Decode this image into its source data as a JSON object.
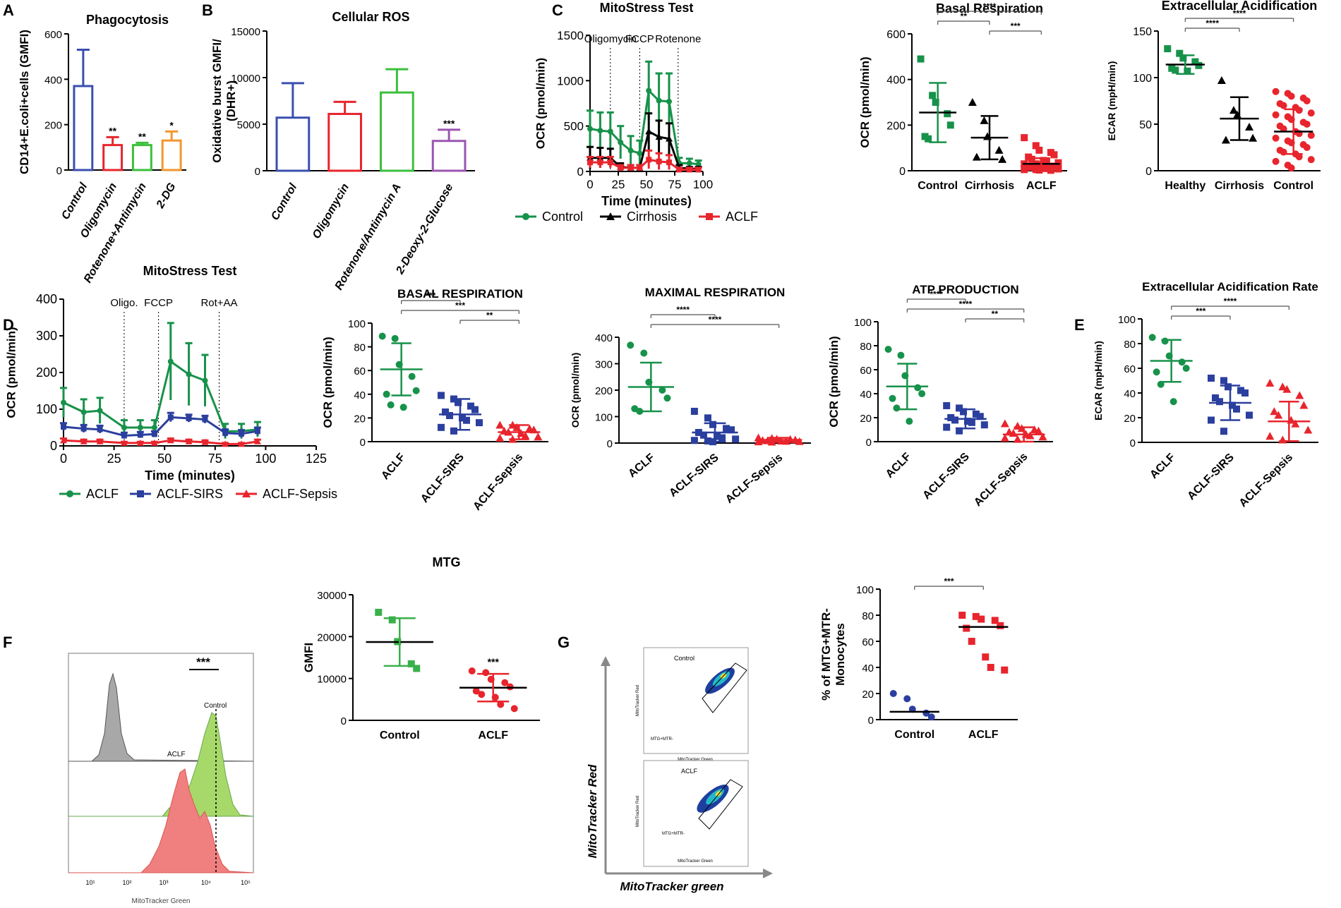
{
  "panel_letters": [
    "A",
    "B",
    "C",
    "D",
    "E",
    "F",
    "G"
  ],
  "colors": {
    "blue": "#3a4fb0",
    "red": "#e8252d",
    "green": "#3cbf3c",
    "orange": "#f3962d",
    "purple": "#9b55b0",
    "dgreen": "#17924a",
    "black": "#000000",
    "navy": "#2b3f9e",
    "mtgGreen": "#3ab04a"
  },
  "chart_data": [
    {
      "id": "A",
      "type": "bar",
      "title": "Phagocytosis",
      "ylabel": "CD14+E.coli+cells (GMFI)",
      "ylim": [
        0,
        600
      ],
      "yticks": [
        0,
        200,
        400,
        600
      ],
      "categories": [
        "Control",
        "Oligomycin",
        "Rotenone+Antimycin",
        "2-DG"
      ],
      "values": [
        370,
        110,
        110,
        130
      ],
      "errors": [
        160,
        35,
        10,
        40
      ],
      "sig": [
        "",
        "**",
        "**",
        "*"
      ],
      "colors": [
        "#3a4fb0",
        "#e8252d",
        "#3cbf3c",
        "#f3962d"
      ]
    },
    {
      "id": "B",
      "type": "bar",
      "title": "Cellular ROS",
      "ylabel": "Oxidative burst GMFI/ (DHR+)",
      "ylim": [
        0,
        15000
      ],
      "yticks": [
        0,
        5000,
        10000,
        15000
      ],
      "categories": [
        "Control",
        "Oligomycin",
        "Rotenone/Antimycin A",
        "2-Deoxy-2-Glucose"
      ],
      "values": [
        5700,
        6100,
        8400,
        3200
      ],
      "errors": [
        3700,
        1300,
        2500,
        1200
      ],
      "sig": [
        "",
        "",
        "",
        "***"
      ],
      "colors": [
        "#3a4fb0",
        "#e8252d",
        "#3cbf3c",
        "#9b55b0"
      ]
    },
    {
      "id": "C1",
      "type": "line",
      "title": "MitoStress Test",
      "xlabel": "Time (minutes)",
      "ylabel": "OCR (pmol/min)",
      "xlim": [
        0,
        100
      ],
      "ylim": [
        0,
        1500
      ],
      "xticks": [
        0,
        25,
        50,
        75,
        100
      ],
      "yticks": [
        0,
        500,
        1000,
        1500
      ],
      "annotations": [
        {
          "x": 18,
          "label": "Oligomycin"
        },
        {
          "x": 44,
          "label": "FCCP"
        },
        {
          "x": 78,
          "label": "Rotenone"
        }
      ],
      "x": [
        0,
        9,
        18,
        27,
        36,
        44,
        52,
        61,
        70,
        79,
        88,
        96
      ],
      "series": [
        {
          "name": "Control",
          "color": "#17924a",
          "marker": "circle",
          "values": [
            470,
            450,
            440,
            320,
            230,
            200,
            890,
            780,
            770,
            90,
            90,
            80
          ],
          "errors": [
            200,
            200,
            210,
            180,
            160,
            140,
            320,
            300,
            310,
            60,
            50,
            40
          ]
        },
        {
          "name": "Cirrhosis",
          "color": "#000000",
          "marker": "triangle",
          "values": [
            150,
            150,
            150,
            50,
            40,
            40,
            440,
            380,
            360,
            40,
            30,
            30
          ],
          "errors": [
            120,
            110,
            100,
            40,
            30,
            30,
            200,
            180,
            170,
            30,
            20,
            20
          ]
        },
        {
          "name": "ACLF",
          "color": "#e8252d",
          "marker": "square",
          "values": [
            100,
            100,
            100,
            40,
            40,
            40,
            130,
            110,
            100,
            20,
            20,
            20
          ],
          "errors": [
            60,
            60,
            60,
            30,
            30,
            30,
            100,
            90,
            80,
            20,
            20,
            20
          ]
        }
      ],
      "legend": "bottom"
    },
    {
      "id": "C2",
      "type": "scatter",
      "title": "Basal Respiration",
      "ylabel": "OCR (pmol/min)",
      "ylim": [
        0,
        600
      ],
      "yticks": [
        0,
        200,
        400,
        600
      ],
      "categories": [
        "Control",
        "Cirrhosis",
        "ACLF"
      ],
      "means": [
        255,
        145,
        30
      ],
      "sds": [
        130,
        95,
        25
      ],
      "points": [
        [
          490,
          330,
          300,
          250,
          200,
          150,
          140
        ],
        [
          300,
          220,
          150,
          90,
          50,
          60
        ],
        [
          145,
          110,
          90,
          80,
          70,
          60,
          50,
          45,
          40,
          35,
          30,
          30,
          25,
          20,
          20,
          15,
          15,
          10,
          10,
          8,
          5,
          5,
          3,
          2
        ]
      ],
      "markers": [
        "square",
        "triangle",
        "square"
      ],
      "colors": [
        "#17924a",
        "#000000",
        "#e8252d"
      ],
      "brackets": [
        {
          "from": 0,
          "to": 2,
          "label": "****",
          "level": 2
        },
        {
          "from": 0,
          "to": 1,
          "label": "**",
          "level": 1
        },
        {
          "from": 1,
          "to": 2,
          "label": "***",
          "level": 0
        }
      ]
    },
    {
      "id": "C3",
      "type": "scatter",
      "title": "Extracellular Acidification",
      "ylabel": "ECAR (mpH/min)",
      "ylim": [
        0,
        150
      ],
      "yticks": [
        0,
        50,
        100,
        150
      ],
      "categories": [
        "Healthy",
        "Cirrhosis",
        "Control"
      ],
      "means": [
        114,
        56,
        42
      ],
      "sds": [
        10,
        23,
        24
      ],
      "points": [
        [
          131,
          126,
          121,
          117,
          113,
          110,
          108,
          107
        ],
        [
          97,
          65,
          60,
          47,
          35,
          33
        ],
        [
          85,
          83,
          80,
          78,
          75,
          72,
          70,
          68,
          65,
          62,
          60,
          58,
          55,
          52,
          50,
          48,
          45,
          42,
          40,
          38,
          35,
          32,
          30,
          28,
          25,
          22,
          20,
          18,
          15,
          12,
          10,
          6,
          3
        ]
      ],
      "markers": [
        "square",
        "triangle",
        "circle"
      ],
      "colors": [
        "#17924a",
        "#000000",
        "#e8252d"
      ],
      "brackets": [
        {
          "from": 0,
          "to": 2,
          "label": "****",
          "level": 1
        },
        {
          "from": 0,
          "to": 1,
          "label": "****",
          "level": 0
        }
      ]
    },
    {
      "id": "D1",
      "type": "line",
      "title": "MitoStress Test",
      "xlabel": "Time (minutes)",
      "ylabel": "OCR (pmol/min)",
      "xlim": [
        0,
        125
      ],
      "ylim": [
        0,
        400
      ],
      "xticks": [
        0,
        25,
        50,
        75,
        100,
        125
      ],
      "yticks": [
        0,
        100,
        200,
        300,
        400
      ],
      "annotations": [
        {
          "x": 30,
          "label": "Oligo."
        },
        {
          "x": 47,
          "label": "FCCP"
        },
        {
          "x": 77,
          "label": "Rot+AA"
        }
      ],
      "x": [
        0,
        10,
        18,
        30,
        38,
        45,
        53,
        62,
        70,
        80,
        88,
        96
      ],
      "series": [
        {
          "name": "ACLF",
          "color": "#17924a",
          "marker": "circle",
          "values": [
            118,
            92,
            96,
            50,
            50,
            50,
            230,
            195,
            178,
            40,
            40,
            45
          ],
          "errors": [
            40,
            35,
            35,
            20,
            20,
            20,
            105,
            85,
            70,
            20,
            20,
            20
          ]
        },
        {
          "name": "ACLF-SIRS",
          "color": "#2b3f9e",
          "marker": "square",
          "values": [
            52,
            47,
            45,
            28,
            30,
            32,
            78,
            75,
            72,
            35,
            33,
            40
          ],
          "errors": [
            10,
            10,
            10,
            8,
            8,
            8,
            12,
            10,
            10,
            10,
            10,
            10
          ]
        },
        {
          "name": "ACLF-Sepsis",
          "color": "#e8252d",
          "marker": "triangle",
          "values": [
            15,
            12,
            12,
            8,
            8,
            8,
            15,
            12,
            10,
            5,
            5,
            12
          ],
          "errors": [
            5,
            5,
            5,
            3,
            3,
            3,
            5,
            5,
            5,
            3,
            3,
            5
          ]
        }
      ],
      "legend": "bottom"
    },
    {
      "id": "D2",
      "type": "scatter",
      "title": "BASAL RESPIRATION",
      "ylabel": "OCR (pmol/min)",
      "ylim": [
        0,
        100
      ],
      "yticks": [
        0,
        20,
        40,
        60,
        80,
        100
      ],
      "categories": [
        "ACLF",
        "ACLF-SIRS",
        "ACLF-Sepsis"
      ],
      "means": [
        61,
        23,
        8
      ],
      "sds": [
        22,
        13,
        6
      ],
      "points": [
        [
          89,
          87,
          65,
          55,
          43,
          40,
          31,
          29
        ],
        [
          39,
          36,
          33,
          30,
          27,
          25,
          22,
          20,
          18,
          16,
          12,
          9
        ],
        [
          14,
          14,
          12,
          11,
          10,
          9,
          8,
          7,
          5,
          4,
          3,
          2
        ]
      ],
      "markers": [
        "circle",
        "square",
        "triangle"
      ],
      "colors": [
        "#17924a",
        "#2b3f9e",
        "#e8252d"
      ],
      "brackets": [
        {
          "from": 0,
          "to": 2,
          "label": "***",
          "level": 1
        },
        {
          "from": 0,
          "to": 1,
          "label": "***",
          "level": 2
        },
        {
          "from": 1,
          "to": 2,
          "label": "**",
          "level": 0
        }
      ]
    },
    {
      "id": "D3",
      "type": "scatter",
      "title": "MAXIMAL RESPIRATION",
      "ylabel": "OCR (pmol/min)",
      "ylim": [
        0,
        400
      ],
      "yticks": [
        0,
        100,
        200,
        300,
        400
      ],
      "categories": [
        "ACLF",
        "ACLF-SIRS",
        "ACLF-Sepsis"
      ],
      "means": [
        212,
        40,
        12
      ],
      "sds": [
        92,
        35,
        8
      ],
      "points": [
        [
          370,
          340,
          230,
          200,
          170,
          130,
          120
        ],
        [
          120,
          95,
          70,
          55,
          50,
          40,
          30,
          25,
          20,
          15,
          10,
          8,
          5
        ],
        [
          20,
          18,
          15,
          14,
          12,
          10,
          9,
          8,
          7,
          6,
          5,
          4
        ]
      ],
      "markers": [
        "circle",
        "square",
        "triangle"
      ],
      "colors": [
        "#17924a",
        "#2b3f9e",
        "#e8252d"
      ],
      "brackets": [
        {
          "from": 0,
          "to": 2,
          "label": "****",
          "level": 1
        },
        {
          "from": 0,
          "to": 1,
          "label": "****",
          "level": 2
        }
      ]
    },
    {
      "id": "D4",
      "type": "scatter",
      "title": "ATP PRODUCTION",
      "ylabel": "OCR (pmol/min)",
      "ylim": [
        0,
        100
      ],
      "yticks": [
        0,
        20,
        40,
        60,
        80,
        100
      ],
      "categories": [
        "ACLF",
        "ACLF-SIRS",
        "ACLF-Sepsis"
      ],
      "means": [
        46,
        19,
        6
      ],
      "sds": [
        19,
        8,
        6
      ],
      "points": [
        [
          77,
          72,
          55,
          45,
          40,
          36,
          28,
          17
        ],
        [
          30,
          28,
          25,
          23,
          21,
          20,
          18,
          17,
          16,
          14,
          12,
          9
        ],
        [
          15,
          13,
          11,
          10,
          9,
          8,
          7,
          6,
          5,
          4,
          3,
          2
        ]
      ],
      "markers": [
        "circle",
        "square",
        "triangle"
      ],
      "colors": [
        "#17924a",
        "#2b3f9e",
        "#e8252d"
      ],
      "brackets": [
        {
          "from": 0,
          "to": 2,
          "label": "****",
          "level": 1
        },
        {
          "from": 0,
          "to": 1,
          "label": "****",
          "level": 2
        },
        {
          "from": 1,
          "to": 2,
          "label": "**",
          "level": 0
        }
      ]
    },
    {
      "id": "E",
      "type": "scatter",
      "title": "Extracellular Acidification  Rate",
      "ylabel": "ECAR (mpH/min)",
      "ylim": [
        0,
        100
      ],
      "yticks": [
        0,
        20,
        40,
        60,
        80,
        100
      ],
      "categories": [
        "ACLF",
        "ACLF-SIRS",
        "ACLF-Sepsis"
      ],
      "means": [
        66,
        32,
        17
      ],
      "sds": [
        17,
        14,
        16
      ],
      "points": [
        [
          85,
          82,
          70,
          65,
          60,
          57,
          47,
          33
        ],
        [
          52,
          50,
          45,
          42,
          40,
          36,
          33,
          30,
          27,
          22,
          18,
          9
        ],
        [
          48,
          45,
          43,
          38,
          30,
          25,
          22,
          18,
          15,
          10,
          5,
          2
        ]
      ],
      "markers": [
        "circle",
        "square",
        "triangle"
      ],
      "colors": [
        "#17924a",
        "#2b3f9e",
        "#e8252d"
      ],
      "brackets": [
        {
          "from": 0,
          "to": 2,
          "label": "****",
          "level": 1
        },
        {
          "from": 0,
          "to": 1,
          "label": "***",
          "level": 0
        }
      ]
    },
    {
      "id": "F2",
      "type": "scatter",
      "title": "MTG",
      "ylabel": "GMFI",
      "ylim": [
        0,
        30000
      ],
      "yticks": [
        0,
        10000,
        20000,
        30000
      ],
      "categories": [
        "Control",
        "ACLF"
      ],
      "means": [
        18700,
        7800
      ],
      "sds": [
        5700,
        3300
      ],
      "points": [
        [
          25800,
          24000,
          18800,
          13500,
          12400
        ],
        [
          11800,
          11400,
          9800,
          9000,
          8000,
          7000,
          6200,
          5500,
          3800,
          2800
        ]
      ],
      "markers": [
        "square",
        "circle"
      ],
      "colors": [
        "#3ab04a",
        "#e8252d"
      ],
      "sig": [
        "",
        "***"
      ],
      "brackets": []
    },
    {
      "id": "G2",
      "type": "scatter",
      "title": "",
      "ylabel": "% of MTG+MTR- Monocytes",
      "ylim": [
        0,
        100
      ],
      "yticks": [
        0,
        20,
        40,
        60,
        80,
        100
      ],
      "categories": [
        "Control",
        "ACLF"
      ],
      "means": [
        6,
        71
      ],
      "sds": [
        0,
        0
      ],
      "points": [
        [
          20,
          16,
          8,
          5,
          2
        ],
        [
          80,
          79,
          77,
          76,
          72,
          70,
          60,
          48,
          40,
          38
        ]
      ],
      "markers": [
        "circle",
        "square"
      ],
      "colors": [
        "#2b3f9e",
        "#e8252d"
      ],
      "brackets": [
        {
          "from": 0,
          "to": 1,
          "label": "***",
          "level": 0
        }
      ]
    }
  ],
  "histogram": {
    "xlabel": "MitoTracker Green",
    "labels": [
      "Control",
      "ACLF"
    ],
    "sig": "***",
    "ticks": [
      "10¹",
      "10²",
      "10³",
      "10⁴",
      "10⁵"
    ]
  },
  "flow": {
    "xlabel": "MitoTracker green",
    "ylabel": "MitoTracker Red",
    "plots": [
      "Control",
      "ACLF"
    ],
    "gate": "MTG+MTR-",
    "inner_x": "MitoTracker Green",
    "inner_y": "MitoTracker Red"
  }
}
